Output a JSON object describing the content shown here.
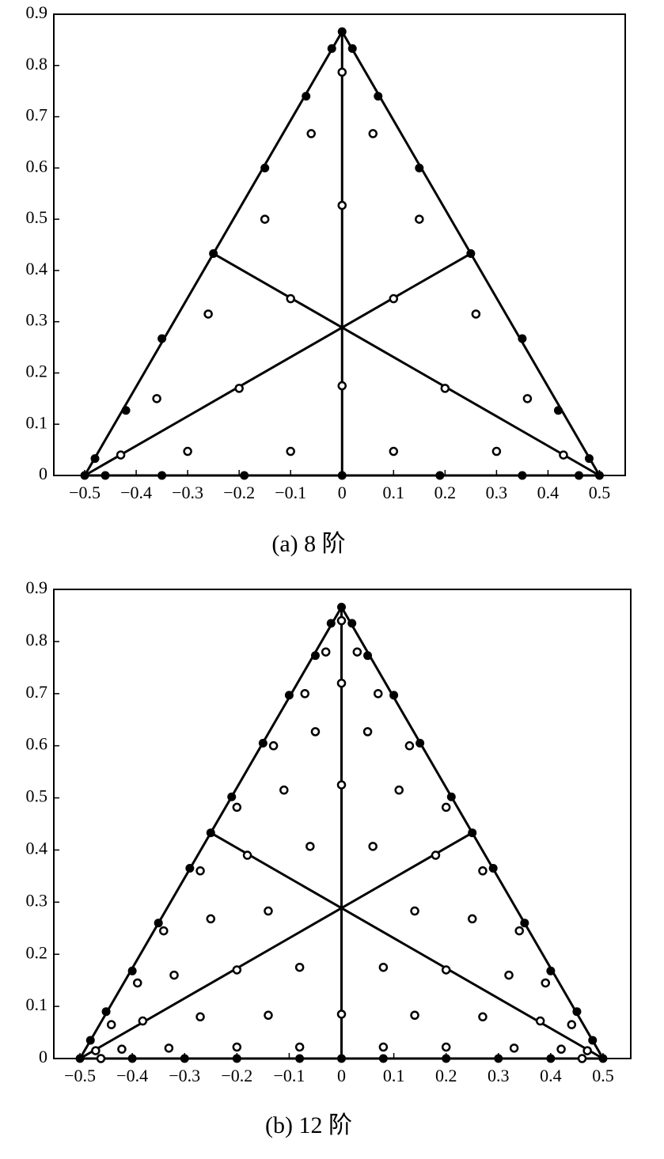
{
  "chart_data": [
    {
      "type": "scatter",
      "caption": "(a) 8 阶",
      "xlim": [
        -0.56,
        0.55
      ],
      "ylim": [
        0,
        0.9
      ],
      "xticks": [
        {
          "value": -0.5,
          "label": "−0.5"
        },
        {
          "value": -0.4,
          "label": "−0.4"
        },
        {
          "value": -0.3,
          "label": "−0.3"
        },
        {
          "value": -0.2,
          "label": "−0.2"
        },
        {
          "value": -0.1,
          "label": "−0.1"
        },
        0,
        0.1,
        0.2,
        0.3,
        0.4,
        0.5
      ],
      "yticks": [
        0,
        0.1,
        0.2,
        0.3,
        0.4,
        0.5,
        0.6,
        0.7,
        0.8,
        0.9
      ],
      "series": [
        {
          "mode": "lines",
          "color": "#000000",
          "x": [
            -0.5,
            0.5,
            0,
            -0.5,
            null,
            0,
            0,
            null,
            -0.5,
            0.25,
            null,
            0.5,
            -0.25
          ],
          "values": [
            0,
            0,
            0.866,
            0,
            null,
            0.866,
            0,
            null,
            0,
            0.433,
            null,
            0,
            0.433
          ]
        },
        {
          "marker": "filled",
          "color": "#000000",
          "x": [
            0,
            -0.02,
            0.02,
            -0.07,
            0.07,
            -0.15,
            0.15,
            -0.25,
            0.25,
            -0.35,
            0.35,
            -0.42,
            0.42,
            -0.48,
            0.48,
            -0.5,
            0.5,
            -0.46,
            0.46,
            -0.35,
            0.35,
            -0.19,
            0.19,
            0
          ],
          "values": [
            0.866,
            0.833,
            0.833,
            0.74,
            0.74,
            0.6,
            0.6,
            0.433,
            0.433,
            0.267,
            0.267,
            0.127,
            0.127,
            0.033,
            0.033,
            0,
            0,
            0,
            0,
            0,
            0,
            0,
            0,
            0
          ]
        },
        {
          "marker": "open",
          "color": "#000000",
          "x": [
            0,
            0,
            0,
            -0.1,
            0.1,
            -0.2,
            0.2,
            -0.43,
            0.43,
            -0.06,
            0.06,
            -0.15,
            0.15,
            -0.26,
            0.26,
            -0.36,
            0.36,
            -0.3,
            0.3,
            -0.1,
            0.1
          ],
          "values": [
            0.787,
            0.527,
            0.175,
            0.345,
            0.345,
            0.17,
            0.17,
            0.04,
            0.04,
            0.667,
            0.667,
            0.5,
            0.5,
            0.315,
            0.315,
            0.15,
            0.15,
            0.047,
            0.047,
            0.047,
            0.047
          ]
        }
      ]
    },
    {
      "type": "scatter",
      "caption": "(b) 12 阶",
      "xlim": [
        -0.55,
        0.553
      ],
      "ylim": [
        0,
        0.9
      ],
      "xticks": [
        {
          "value": -0.5,
          "label": "−0.5"
        },
        {
          "value": -0.4,
          "label": "−0.4"
        },
        {
          "value": -0.3,
          "label": "−0.3"
        },
        {
          "value": -0.2,
          "label": "−0.2"
        },
        {
          "value": -0.1,
          "label": "−0.1"
        },
        0,
        0.1,
        0.2,
        0.3,
        0.4,
        0.5
      ],
      "yticks": [
        0,
        0.1,
        0.2,
        0.3,
        0.4,
        0.5,
        0.6,
        0.7,
        0.8,
        0.9
      ],
      "series": [
        {
          "mode": "lines",
          "color": "#000000",
          "x": [
            -0.5,
            0.5,
            0,
            -0.5,
            null,
            0,
            0,
            null,
            -0.5,
            0.25,
            null,
            0.5,
            -0.25
          ],
          "values": [
            0,
            0,
            0.866,
            0,
            null,
            0.866,
            0,
            null,
            0,
            0.433,
            null,
            0,
            0.433
          ]
        },
        {
          "marker": "filled",
          "color": "#000000",
          "x": [
            0,
            -0.02,
            0.02,
            -0.05,
            0.05,
            -0.1,
            0.1,
            -0.15,
            0.15,
            -0.21,
            0.21,
            -0.25,
            0.25,
            -0.29,
            0.29,
            -0.35,
            0.35,
            -0.4,
            0.4,
            -0.45,
            0.45,
            -0.48,
            0.48,
            -0.5,
            0.5,
            -0.4,
            0.4,
            -0.3,
            0.3,
            -0.2,
            0.2,
            -0.08,
            0.08,
            0
          ],
          "values": [
            0.866,
            0.835,
            0.835,
            0.773,
            0.773,
            0.697,
            0.697,
            0.605,
            0.605,
            0.502,
            0.502,
            0.433,
            0.433,
            0.365,
            0.365,
            0.26,
            0.26,
            0.168,
            0.168,
            0.09,
            0.09,
            0.035,
            0.035,
            0,
            0,
            0,
            0,
            0,
            0,
            0,
            0,
            0,
            0,
            0
          ]
        },
        {
          "marker": "open",
          "color": "#000000",
          "x": [
            0,
            0,
            0,
            0,
            -0.18,
            0.18,
            -0.2,
            0.2,
            -0.38,
            0.38,
            -0.47,
            0.47,
            -0.03,
            0.03,
            -0.07,
            0.07,
            -0.05,
            0.05,
            -0.13,
            0.13,
            -0.11,
            0.11,
            -0.2,
            0.2,
            -0.06,
            0.06,
            -0.27,
            0.27,
            -0.14,
            0.14,
            -0.25,
            0.25,
            -0.34,
            0.34,
            -0.08,
            0.08,
            -0.32,
            0.32,
            -0.39,
            0.39,
            -0.14,
            0.14,
            -0.27,
            0.27,
            -0.44,
            0.44,
            -0.08,
            0.08,
            -0.2,
            0.2,
            -0.33,
            0.33,
            -0.42,
            0.42,
            -0.46,
            0.46
          ],
          "values": [
            0.84,
            0.72,
            0.525,
            0.085,
            0.39,
            0.39,
            0.17,
            0.17,
            0.072,
            0.072,
            0.015,
            0.015,
            0.78,
            0.78,
            0.7,
            0.7,
            0.627,
            0.627,
            0.6,
            0.6,
            0.515,
            0.515,
            0.482,
            0.482,
            0.407,
            0.407,
            0.36,
            0.36,
            0.283,
            0.283,
            0.268,
            0.268,
            0.245,
            0.245,
            0.175,
            0.175,
            0.16,
            0.16,
            0.145,
            0.145,
            0.083,
            0.083,
            0.08,
            0.08,
            0.065,
            0.065,
            0.022,
            0.022,
            0.022,
            0.022,
            0.02,
            0.02,
            0.018,
            0.018,
            0,
            0
          ]
        }
      ]
    }
  ]
}
